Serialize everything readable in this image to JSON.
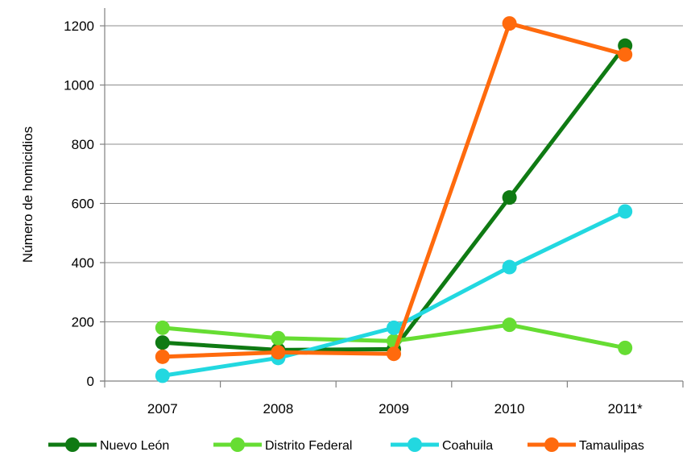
{
  "chart_data": {
    "type": "line",
    "title": "",
    "xlabel": "",
    "ylabel": "Número de homicidios",
    "categories": [
      "2007",
      "2008",
      "2009",
      "2010",
      "2011*"
    ],
    "ylim": [
      0,
      1200
    ],
    "yticks": [
      0,
      200,
      400,
      600,
      800,
      1000,
      1200
    ],
    "grid": "horizontal",
    "legend_position": "bottom",
    "series": [
      {
        "name": "Nuevo León",
        "color": "#0f7a13",
        "values": [
          130,
          105,
          108,
          620,
          1133
        ]
      },
      {
        "name": "Distrito Federal",
        "color": "#66dd33",
        "values": [
          180,
          145,
          135,
          190,
          112
        ]
      },
      {
        "name": "Coahuila",
        "color": "#22d8e0",
        "values": [
          18,
          78,
          180,
          385,
          573
        ]
      },
      {
        "name": "Tamaulipas",
        "color": "#ff6a0d",
        "values": [
          82,
          97,
          92,
          1208,
          1103
        ]
      }
    ]
  }
}
